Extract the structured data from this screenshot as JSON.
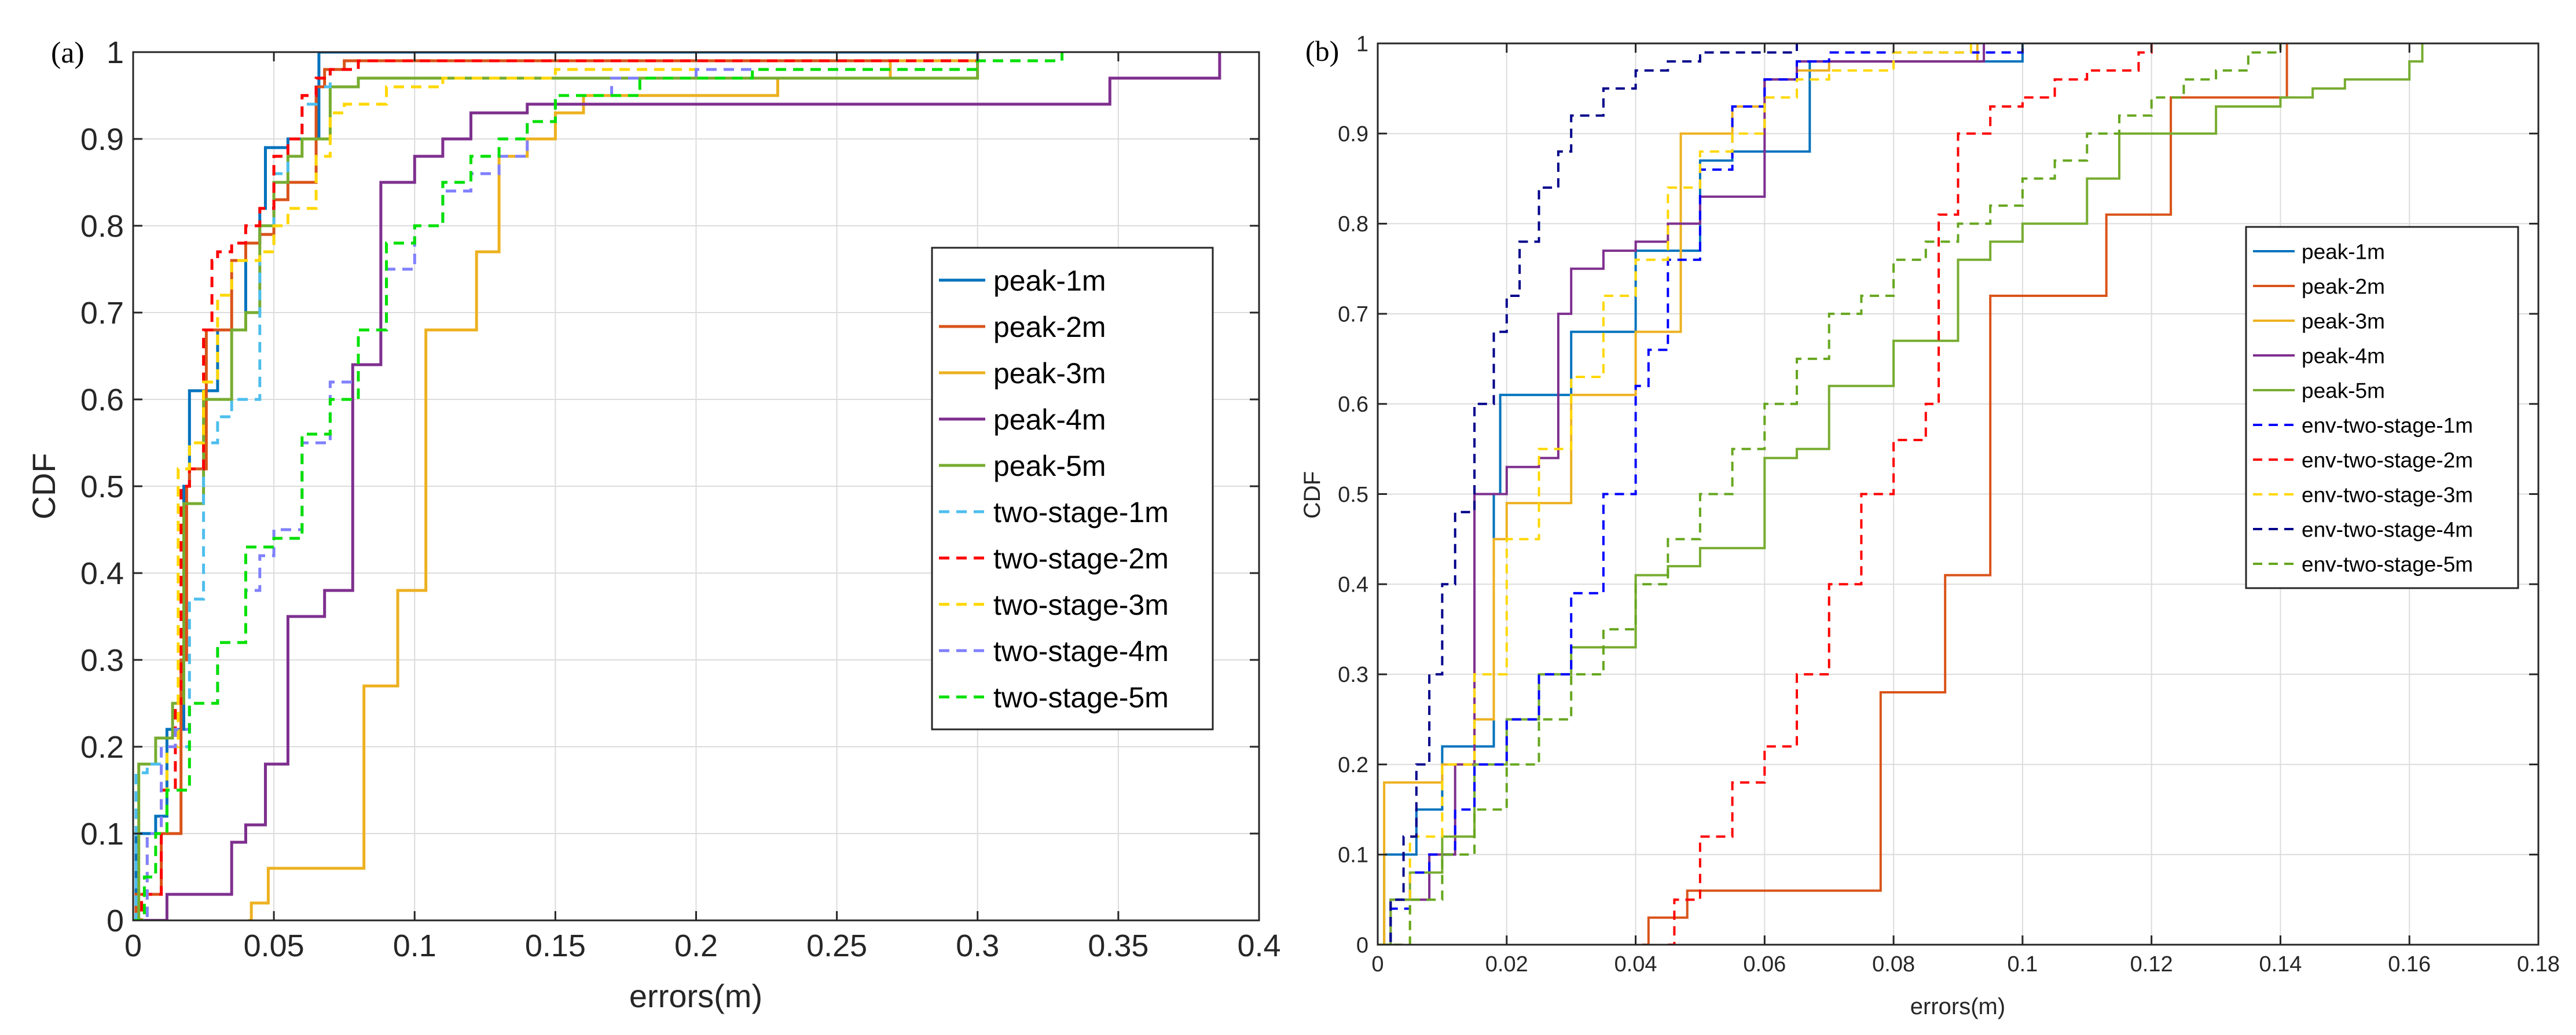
{
  "chart_data": [
    {
      "type": "line",
      "panel_label": "(a)",
      "title": "",
      "xlabel": "errors(m)",
      "ylabel": "CDF",
      "xlim": [
        0,
        0.4
      ],
      "ylim": [
        0,
        1
      ],
      "grid": true,
      "legend_position": "right",
      "x_ticks": [
        0,
        0.05,
        0.1,
        0.15,
        0.2,
        0.25,
        0.3,
        0.35,
        0.4
      ],
      "x_tick_labels": [
        "0",
        "0.05",
        "0.1",
        "0.15",
        "0.2",
        "0.25",
        "0.3",
        "0.35",
        "0.4"
      ],
      "y_ticks": [
        0,
        0.1,
        0.2,
        0.3,
        0.4,
        0.5,
        0.6,
        0.7,
        0.8,
        0.9,
        1
      ],
      "y_tick_labels": [
        "0",
        "0.1",
        "0.2",
        "0.3",
        "0.4",
        "0.5",
        "0.6",
        "0.7",
        "0.8",
        "0.9",
        "1"
      ],
      "series": [
        {
          "name": "peak-1m",
          "color": "#0072BD",
          "dash": "solid",
          "x": [
            0,
            0.001,
            0.003,
            0.008,
            0.012,
            0.014,
            0.018,
            0.02,
            0.025,
            0.03,
            0.035,
            0.04,
            0.045,
            0.047,
            0.05,
            0.055,
            0.065,
            0.066,
            0.3
          ],
          "y": [
            0,
            0.1,
            0.1,
            0.12,
            0.22,
            0.22,
            0.5,
            0.61,
            0.61,
            0.68,
            0.68,
            0.78,
            0.82,
            0.89,
            0.89,
            0.9,
            0.9,
            1.0,
            1.0
          ]
        },
        {
          "name": "peak-2m",
          "color": "#D95319",
          "dash": "solid",
          "x": [
            0,
            0.001,
            0.002,
            0.01,
            0.017,
            0.019,
            0.02,
            0.026,
            0.03,
            0.035,
            0.04,
            0.045,
            0.05,
            0.055,
            0.06,
            0.065,
            0.068,
            0.075,
            0.3
          ],
          "y": [
            0,
            0.03,
            0.03,
            0.1,
            0.3,
            0.5,
            0.52,
            0.68,
            0.68,
            0.76,
            0.78,
            0.79,
            0.83,
            0.85,
            0.85,
            0.96,
            0.98,
            0.99,
            1.0
          ]
        },
        {
          "name": "peak-3m",
          "color": "#EDB120",
          "dash": "solid",
          "x": [
            0.041,
            0.042,
            0.048,
            0.077,
            0.082,
            0.088,
            0.094,
            0.104,
            0.11,
            0.122,
            0.13,
            0.14,
            0.15,
            0.16,
            0.228,
            0.229,
            0.268,
            0.269,
            0.3
          ],
          "y": [
            0,
            0.02,
            0.06,
            0.06,
            0.27,
            0.27,
            0.38,
            0.68,
            0.68,
            0.77,
            0.88,
            0.9,
            0.93,
            0.95,
            0.95,
            0.97,
            0.97,
            0.99,
            1.0
          ]
        },
        {
          "name": "peak-4m",
          "color": "#7E2F8E",
          "dash": "solid",
          "x": [
            0,
            0.012,
            0.03,
            0.035,
            0.04,
            0.047,
            0.055,
            0.068,
            0.078,
            0.088,
            0.1,
            0.11,
            0.12,
            0.13,
            0.14,
            0.15,
            0.2,
            0.347,
            0.385,
            0.386
          ],
          "y": [
            0,
            0.03,
            0.03,
            0.09,
            0.11,
            0.18,
            0.35,
            0.38,
            0.64,
            0.85,
            0.88,
            0.9,
            0.93,
            0.93,
            0.94,
            0.94,
            0.94,
            0.97,
            0.97,
            1.0
          ]
        },
        {
          "name": "peak-5m",
          "color": "#77AC30",
          "dash": "solid",
          "x": [
            0,
            0.002,
            0.008,
            0.014,
            0.018,
            0.02,
            0.025,
            0.03,
            0.035,
            0.04,
            0.045,
            0.05,
            0.055,
            0.06,
            0.07,
            0.08,
            0.3
          ],
          "y": [
            0,
            0.18,
            0.21,
            0.25,
            0.48,
            0.48,
            0.6,
            0.6,
            0.68,
            0.7,
            0.8,
            0.85,
            0.88,
            0.9,
            0.96,
            0.97,
            1.0
          ]
        },
        {
          "name": "two-stage-1m",
          "color": "#4DBEEE",
          "dash": "dashed",
          "x": [
            0,
            0.001,
            0.005,
            0.01,
            0.02,
            0.025,
            0.03,
            0.035,
            0.04,
            0.045,
            0.05,
            0.055,
            0.06,
            0.065,
            0.07,
            0.08,
            0.12,
            0.3
          ],
          "y": [
            0,
            0.17,
            0.18,
            0.2,
            0.37,
            0.55,
            0.58,
            0.6,
            0.6,
            0.77,
            0.86,
            0.9,
            0.94,
            0.96,
            0.98,
            0.99,
            0.99,
            1.0
          ]
        },
        {
          "name": "two-stage-2m",
          "color": "#FF0000",
          "dash": "dashed",
          "x": [
            0,
            0.003,
            0.01,
            0.015,
            0.017,
            0.02,
            0.025,
            0.028,
            0.03,
            0.035,
            0.04,
            0.045,
            0.05,
            0.055,
            0.06,
            0.065,
            0.07,
            0.08,
            0.3
          ],
          "y": [
            0,
            0.03,
            0.15,
            0.25,
            0.5,
            0.52,
            0.68,
            0.76,
            0.77,
            0.78,
            0.8,
            0.82,
            0.88,
            0.9,
            0.95,
            0.97,
            0.98,
            0.99,
            1.0
          ]
        },
        {
          "name": "two-stage-3m",
          "color": "#FFD700",
          "dash": "dashed",
          "x": [
            0,
            0.005,
            0.012,
            0.016,
            0.02,
            0.025,
            0.03,
            0.035,
            0.045,
            0.05,
            0.055,
            0.065,
            0.07,
            0.075,
            0.09,
            0.11,
            0.15,
            0.3
          ],
          "y": [
            0,
            0.1,
            0.2,
            0.52,
            0.55,
            0.62,
            0.72,
            0.76,
            0.77,
            0.8,
            0.82,
            0.88,
            0.93,
            0.94,
            0.96,
            0.97,
            0.98,
            1.0
          ]
        },
        {
          "name": "two-stage-4m",
          "color": "#8080FF",
          "dash": "dashed",
          "x": [
            0,
            0.005,
            0.01,
            0.015,
            0.02,
            0.03,
            0.04,
            0.045,
            0.05,
            0.06,
            0.07,
            0.08,
            0.09,
            0.1,
            0.11,
            0.12,
            0.13,
            0.14,
            0.15,
            0.17,
            0.2,
            0.3
          ],
          "y": [
            0,
            0.1,
            0.2,
            0.22,
            0.25,
            0.32,
            0.38,
            0.42,
            0.45,
            0.55,
            0.62,
            0.68,
            0.75,
            0.8,
            0.84,
            0.86,
            0.88,
            0.92,
            0.95,
            0.97,
            0.98,
            1.0
          ]
        },
        {
          "name": "two-stage-5m",
          "color": "#00E000",
          "dash": "dashed",
          "x": [
            0,
            0.004,
            0.008,
            0.012,
            0.02,
            0.03,
            0.04,
            0.05,
            0.06,
            0.07,
            0.08,
            0.09,
            0.1,
            0.11,
            0.12,
            0.13,
            0.14,
            0.15,
            0.18,
            0.22,
            0.3,
            0.33
          ],
          "y": [
            0,
            0.05,
            0.1,
            0.15,
            0.25,
            0.32,
            0.43,
            0.44,
            0.56,
            0.6,
            0.68,
            0.78,
            0.8,
            0.85,
            0.88,
            0.9,
            0.92,
            0.95,
            0.97,
            0.98,
            0.99,
            1.0
          ]
        }
      ]
    },
    {
      "type": "line",
      "panel_label": "(b)",
      "title": "",
      "xlabel": "errors(m)",
      "ylabel": "CDF",
      "xlim": [
        0,
        0.18
      ],
      "ylim": [
        0,
        1
      ],
      "grid": true,
      "legend_position": "right",
      "x_ticks": [
        0,
        0.02,
        0.04,
        0.06,
        0.08,
        0.1,
        0.12,
        0.14,
        0.16,
        0.18
      ],
      "x_tick_labels": [
        "0",
        "0.02",
        "0.04",
        "0.06",
        "0.08",
        "0.1",
        "0.12",
        "0.14",
        "0.16",
        "0.18"
      ],
      "y_ticks": [
        0,
        0.1,
        0.2,
        0.3,
        0.4,
        0.5,
        0.6,
        0.7,
        0.8,
        0.9,
        1
      ],
      "y_tick_labels": [
        "0",
        "0.1",
        "0.2",
        "0.3",
        "0.4",
        "0.5",
        "0.6",
        "0.7",
        "0.8",
        "0.9",
        "1"
      ],
      "series": [
        {
          "name": "peak-1m",
          "color": "#0072BD",
          "dash": "solid",
          "x": [
            0,
            0.001,
            0.002,
            0.006,
            0.01,
            0.015,
            0.018,
            0.019,
            0.025,
            0.03,
            0.035,
            0.04,
            0.045,
            0.05,
            0.055,
            0.06,
            0.065,
            0.067,
            0.1
          ],
          "y": [
            0,
            0.1,
            0.1,
            0.15,
            0.22,
            0.22,
            0.5,
            0.61,
            0.61,
            0.68,
            0.68,
            0.77,
            0.77,
            0.87,
            0.88,
            0.88,
            0.88,
            0.98,
            1.0
          ]
        },
        {
          "name": "peak-2m",
          "color": "#D95319",
          "dash": "solid",
          "x": [
            0.041,
            0.042,
            0.048,
            0.055,
            0.06,
            0.077,
            0.078,
            0.088,
            0.094,
            0.095,
            0.112,
            0.113,
            0.122,
            0.123,
            0.14,
            0.141
          ],
          "y": [
            0,
            0.03,
            0.06,
            0.06,
            0.06,
            0.06,
            0.28,
            0.41,
            0.41,
            0.72,
            0.72,
            0.81,
            0.81,
            0.94,
            0.94,
            1.0
          ]
        },
        {
          "name": "peak-3m",
          "color": "#EDB120",
          "dash": "solid",
          "x": [
            0,
            0.001,
            0.006,
            0.01,
            0.015,
            0.018,
            0.02,
            0.025,
            0.03,
            0.035,
            0.04,
            0.045,
            0.047,
            0.05,
            0.055,
            0.06,
            0.065,
            0.07,
            0.09,
            0.093
          ],
          "y": [
            0,
            0.18,
            0.18,
            0.2,
            0.25,
            0.45,
            0.49,
            0.49,
            0.61,
            0.61,
            0.68,
            0.68,
            0.9,
            0.9,
            0.93,
            0.96,
            0.97,
            0.98,
            0.98,
            1.0
          ]
        },
        {
          "name": "peak-4m",
          "color": "#7E2F8E",
          "dash": "solid",
          "x": [
            0,
            0.002,
            0.005,
            0.008,
            0.012,
            0.015,
            0.018,
            0.02,
            0.025,
            0.028,
            0.03,
            0.035,
            0.04,
            0.045,
            0.05,
            0.055,
            0.06,
            0.065,
            0.07,
            0.09,
            0.094
          ],
          "y": [
            0,
            0.05,
            0.05,
            0.1,
            0.2,
            0.5,
            0.5,
            0.53,
            0.54,
            0.7,
            0.75,
            0.77,
            0.78,
            0.8,
            0.83,
            0.83,
            0.96,
            0.98,
            0.98,
            0.98,
            1.0
          ]
        },
        {
          "name": "peak-5m",
          "color": "#77AC30",
          "dash": "solid",
          "x": [
            0,
            0.002,
            0.005,
            0.01,
            0.015,
            0.02,
            0.025,
            0.03,
            0.035,
            0.04,
            0.045,
            0.05,
            0.055,
            0.06,
            0.065,
            0.07,
            0.075,
            0.08,
            0.085,
            0.09,
            0.095,
            0.1,
            0.11,
            0.115,
            0.12,
            0.13,
            0.14,
            0.145,
            0.15,
            0.16,
            0.162
          ],
          "y": [
            0,
            0.05,
            0.08,
            0.12,
            0.2,
            0.25,
            0.3,
            0.33,
            0.33,
            0.41,
            0.42,
            0.44,
            0.44,
            0.54,
            0.55,
            0.62,
            0.62,
            0.67,
            0.67,
            0.76,
            0.78,
            0.8,
            0.85,
            0.9,
            0.9,
            0.93,
            0.94,
            0.95,
            0.96,
            0.98,
            1.0
          ]
        },
        {
          "name": "env-two-stage-1m",
          "color": "#0000FF",
          "dash": "dashed",
          "x": [
            0,
            0.002,
            0.005,
            0.008,
            0.012,
            0.015,
            0.02,
            0.025,
            0.03,
            0.035,
            0.04,
            0.042,
            0.045,
            0.05,
            0.055,
            0.06,
            0.065,
            0.07,
            0.1
          ],
          "y": [
            0,
            0.04,
            0.08,
            0.1,
            0.15,
            0.2,
            0.25,
            0.3,
            0.39,
            0.5,
            0.62,
            0.66,
            0.76,
            0.86,
            0.93,
            0.96,
            0.98,
            0.99,
            1.0
          ]
        },
        {
          "name": "env-two-stage-2m",
          "color": "#FF0000",
          "dash": "dashed",
          "x": [
            0.045,
            0.046,
            0.05,
            0.055,
            0.06,
            0.065,
            0.07,
            0.075,
            0.08,
            0.085,
            0.087,
            0.09,
            0.095,
            0.1,
            0.105,
            0.11,
            0.118,
            0.12
          ],
          "y": [
            0,
            0.05,
            0.12,
            0.18,
            0.22,
            0.3,
            0.4,
            0.5,
            0.56,
            0.6,
            0.81,
            0.9,
            0.93,
            0.94,
            0.96,
            0.97,
            0.99,
            1.0
          ]
        },
        {
          "name": "env-two-stage-3m",
          "color": "#FFD700",
          "dash": "dashed",
          "x": [
            0,
            0.005,
            0.01,
            0.015,
            0.02,
            0.025,
            0.03,
            0.035,
            0.04,
            0.045,
            0.05,
            0.055,
            0.06,
            0.065,
            0.07,
            0.08,
            0.09,
            0.092
          ],
          "y": [
            0,
            0.12,
            0.2,
            0.3,
            0.45,
            0.55,
            0.63,
            0.72,
            0.76,
            0.84,
            0.88,
            0.9,
            0.94,
            0.96,
            0.97,
            0.99,
            0.99,
            1.0
          ]
        },
        {
          "name": "env-two-stage-4m",
          "color": "#00008B",
          "dash": "dashed",
          "x": [
            0,
            0.002,
            0.004,
            0.006,
            0.008,
            0.01,
            0.012,
            0.015,
            0.018,
            0.02,
            0.022,
            0.025,
            0.028,
            0.03,
            0.035,
            0.04,
            0.045,
            0.05,
            0.055,
            0.06,
            0.065
          ],
          "y": [
            0,
            0.05,
            0.12,
            0.2,
            0.3,
            0.4,
            0.48,
            0.6,
            0.68,
            0.72,
            0.78,
            0.84,
            0.88,
            0.92,
            0.95,
            0.97,
            0.98,
            0.99,
            0.99,
            0.99,
            1.0
          ]
        },
        {
          "name": "env-two-stage-5m",
          "color": "#66A61E",
          "dash": "dashed",
          "x": [
            0,
            0.005,
            0.01,
            0.015,
            0.02,
            0.025,
            0.03,
            0.035,
            0.04,
            0.045,
            0.05,
            0.055,
            0.06,
            0.065,
            0.07,
            0.075,
            0.08,
            0.085,
            0.09,
            0.095,
            0.1,
            0.105,
            0.11,
            0.115,
            0.12,
            0.125,
            0.13,
            0.135,
            0.14
          ],
          "y": [
            0,
            0.05,
            0.1,
            0.15,
            0.2,
            0.25,
            0.3,
            0.35,
            0.4,
            0.45,
            0.5,
            0.55,
            0.6,
            0.65,
            0.7,
            0.72,
            0.76,
            0.78,
            0.8,
            0.82,
            0.85,
            0.87,
            0.9,
            0.92,
            0.94,
            0.96,
            0.97,
            0.99,
            1.0
          ]
        }
      ]
    }
  ]
}
